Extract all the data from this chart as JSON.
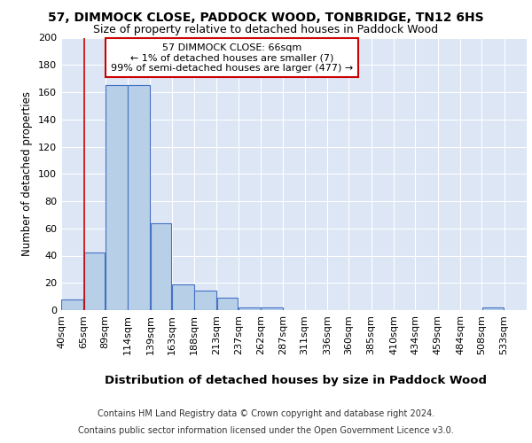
{
  "title_line1": "57, DIMMOCK CLOSE, PADDOCK WOOD, TONBRIDGE, TN12 6HS",
  "title_line2": "Size of property relative to detached houses in Paddock Wood",
  "xlabel": "Distribution of detached houses by size in Paddock Wood",
  "ylabel": "Number of detached properties",
  "bar_values": [
    8,
    42,
    165,
    165,
    64,
    19,
    14,
    9,
    2,
    2,
    0,
    0,
    0,
    0,
    0,
    0,
    0,
    0,
    0,
    2
  ],
  "bar_left_edges": [
    40,
    65,
    89,
    114,
    139,
    163,
    188,
    213,
    237,
    262,
    287,
    311,
    336,
    360,
    385,
    410,
    434,
    459,
    484,
    508
  ],
  "bar_widths": [
    25,
    24,
    25,
    25,
    24,
    25,
    25,
    24,
    25,
    25,
    24,
    25,
    24,
    25,
    25,
    24,
    25,
    25,
    24,
    25
  ],
  "xtick_labels": [
    "40sqm",
    "65sqm",
    "89sqm",
    "114sqm",
    "139sqm",
    "163sqm",
    "188sqm",
    "213sqm",
    "237sqm",
    "262sqm",
    "287sqm",
    "311sqm",
    "336sqm",
    "360sqm",
    "385sqm",
    "410sqm",
    "434sqm",
    "459sqm",
    "484sqm",
    "508sqm",
    "533sqm"
  ],
  "xtick_positions": [
    40,
    65,
    89,
    114,
    139,
    163,
    188,
    213,
    237,
    262,
    287,
    311,
    336,
    360,
    385,
    410,
    434,
    459,
    484,
    508,
    533
  ],
  "bar_color": "#b8cfe8",
  "bar_edge_color": "#4472c4",
  "vline_x": 66,
  "vline_color": "#cc0000",
  "annotation_text": "57 DIMMOCK CLOSE: 66sqm\n← 1% of detached houses are smaller (7)\n99% of semi-detached houses are larger (477) →",
  "annotation_box_color": "#ffffff",
  "annotation_box_edge_color": "#cc0000",
  "ylim": [
    0,
    200
  ],
  "yticks": [
    0,
    20,
    40,
    60,
    80,
    100,
    120,
    140,
    160,
    180,
    200
  ],
  "bg_color": "#dce6f5",
  "grid_color": "#ffffff",
  "footer_line1": "Contains HM Land Registry data © Crown copyright and database right 2024.",
  "footer_line2": "Contains public sector information licensed under the Open Government Licence v3.0."
}
